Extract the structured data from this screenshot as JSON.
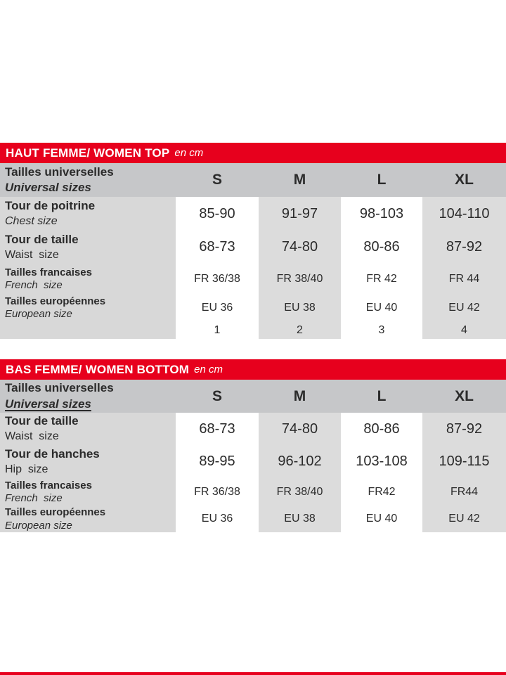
{
  "colors": {
    "red": "#e7001d",
    "header_gray": "#c6c7c9",
    "label_gray": "#d8d8d8",
    "col_gray": "#dcdcdc",
    "text": "#2b2b2b"
  },
  "tables": [
    {
      "title": "HAUT FEMME/ WOMEN TOP",
      "unit": "en cm",
      "header": {
        "fr": "Tailles universelles",
        "en": "Universal sizes",
        "cols": [
          "S",
          "M",
          "L",
          "XL"
        ]
      },
      "rows": [
        {
          "fr": "Tour de poitrine",
          "en": "Chest size",
          "values": [
            "85-90",
            "91-97",
            "98-103",
            "104-110"
          ]
        },
        {
          "fr": "Tour de taille",
          "en": "Waist  size",
          "values": [
            "68-73",
            "74-80",
            "80-86",
            "87-92"
          ]
        },
        {
          "fr": "Tailles francaises",
          "en": "French  size",
          "values": [
            "FR 36/38",
            "FR 38/40",
            "FR 42",
            "FR 44"
          ]
        },
        {
          "fr": "Tailles européennes",
          "en": "European size",
          "values": [
            "EU 36",
            "EU 38",
            "EU 40",
            "EU 42"
          ]
        },
        {
          "fr": "",
          "en": "",
          "values": [
            "1",
            "2",
            "3",
            "4"
          ]
        }
      ]
    },
    {
      "title": "BAS FEMME/ WOMEN BOTTOM",
      "unit": "en cm",
      "header": {
        "fr": "Tailles universelles",
        "en": "Universal sizes",
        "cols": [
          "S",
          "M",
          "L",
          "XL"
        ]
      },
      "rows": [
        {
          "fr": "Tour de taille",
          "en": "Waist  size",
          "values": [
            "68-73",
            "74-80",
            "80-86",
            "87-92"
          ]
        },
        {
          "fr": "Tour de hanches",
          "en": "Hip  size",
          "values": [
            "89-95",
            "96-102",
            "103-108",
            "109-115"
          ]
        },
        {
          "fr": "Tailles francaises",
          "en": "French  size",
          "values": [
            "FR 36/38",
            "FR 38/40",
            "FR42",
            "FR44"
          ]
        },
        {
          "fr": "Tailles européennes",
          "en": "European size",
          "values": [
            "EU 36",
            "EU 38",
            "EU 40",
            "EU 42"
          ]
        }
      ]
    }
  ]
}
